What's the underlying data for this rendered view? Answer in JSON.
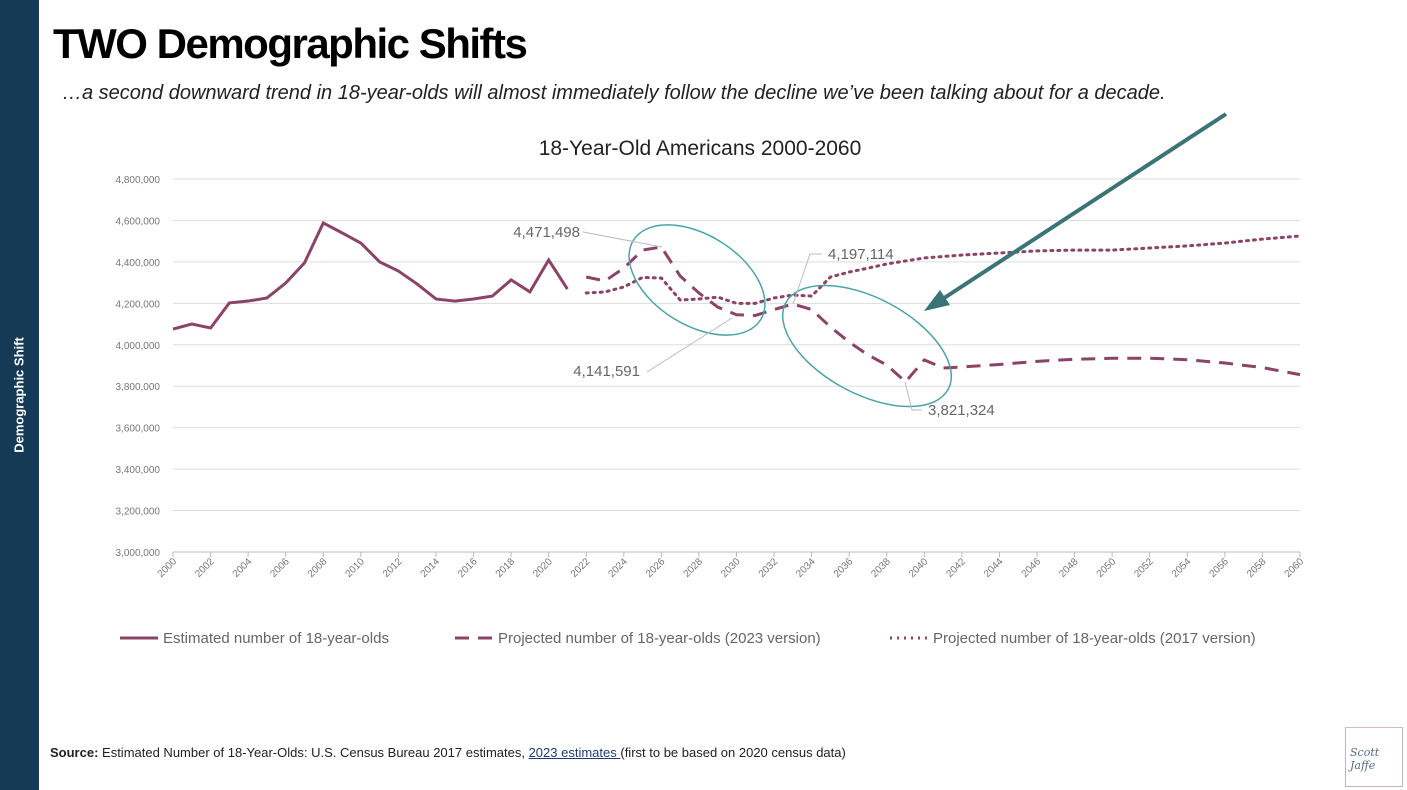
{
  "sidebar_label": "Demographic Shift",
  "title": "TWO Demographic Shifts",
  "subtitle": "…a second downward trend in 18-year-olds will almost immediately follow the decline we’ve been talking about for a decade.",
  "source": {
    "label": "Source:",
    "text": " Estimated Number of 18-Year-Olds: U.S. Census Bureau 2017 estimates, ",
    "link": "2023 estimates ",
    "tail": "(first to be based on 2020 census data)"
  },
  "logo_text": "Scott Jaffe",
  "colors": {
    "series": "#8b4468",
    "ellipse": "#4aa3a8",
    "arrow": "#3a7474",
    "sidebar": "#153a55"
  },
  "chart_data": {
    "type": "line",
    "title": "18-Year-Old Americans 2000-2060",
    "ylim": [
      3000000,
      4800000
    ],
    "yticks": [
      "3,000,000",
      "3,200,000",
      "3,400,000",
      "3,600,000",
      "3,800,000",
      "4,000,000",
      "4,200,000",
      "4,400,000",
      "4,600,000",
      "4,800,000"
    ],
    "xlim": [
      2000,
      2060
    ],
    "xticks": [
      "2000",
      "2002",
      "2004",
      "2006",
      "2008",
      "2010",
      "2012",
      "2014",
      "2016",
      "2018",
      "2020",
      "2022",
      "2024",
      "2026",
      "2028",
      "2030",
      "2032",
      "2034",
      "2036",
      "2038",
      "2040",
      "2042",
      "2044",
      "2046",
      "2048",
      "2050",
      "2052",
      "2054",
      "2056",
      "2058",
      "2060"
    ],
    "grid": true,
    "legend": "bottom",
    "series": [
      {
        "name": "Estimated number of 18-year-olds",
        "style": "solid",
        "x": [
          2000,
          2001,
          2002,
          2003,
          2004,
          2005,
          2006,
          2007,
          2008,
          2009,
          2010,
          2011,
          2012,
          2013,
          2014,
          2015,
          2016,
          2017,
          2018,
          2019,
          2020,
          2021
        ],
        "values": [
          4076000,
          4100000,
          4081000,
          4202000,
          4211000,
          4226000,
          4298000,
          4395000,
          4588000,
          4540000,
          4491000,
          4400000,
          4356000,
          4293000,
          4221000,
          4211000,
          4221000,
          4235000,
          4313000,
          4255000,
          4409000,
          4269000
        ]
      },
      {
        "name": "Projected number of 18-year-olds (2023 version)",
        "style": "dashed",
        "x": [
          2022,
          2023,
          2024,
          2025,
          2026,
          2027,
          2028,
          2029,
          2030,
          2031,
          2032,
          2033,
          2034,
          2035,
          2036,
          2037,
          2038,
          2039,
          2040,
          2041,
          2042,
          2044,
          2046,
          2048,
          2050,
          2052,
          2054,
          2056,
          2058,
          2060
        ],
        "values": [
          4327000,
          4308000,
          4370000,
          4457000,
          4471498,
          4332000,
          4250000,
          4182000,
          4145000,
          4141591,
          4170000,
          4197114,
          4170000,
          4086000,
          4013000,
          3951000,
          3902000,
          3821324,
          3927000,
          3888000,
          3893000,
          3905000,
          3920000,
          3930000,
          3935000,
          3935000,
          3928000,
          3912000,
          3890000,
          3856000
        ]
      },
      {
        "name": "Projected number of 18-year-olds (2017 version)",
        "style": "dotted",
        "x": [
          2022,
          2023,
          2024,
          2025,
          2026,
          2027,
          2028,
          2029,
          2030,
          2031,
          2032,
          2033,
          2034,
          2035,
          2036,
          2037,
          2038,
          2040,
          2042,
          2044,
          2046,
          2048,
          2050,
          2052,
          2054,
          2056,
          2058,
          2060
        ],
        "values": [
          4250000,
          4255000,
          4279000,
          4325000,
          4322000,
          4216000,
          4221000,
          4230000,
          4200000,
          4200000,
          4226000,
          4240000,
          4235000,
          4327000,
          4351000,
          4370000,
          4390000,
          4419000,
          4433000,
          4443000,
          4453000,
          4457000,
          4457000,
          4467000,
          4477000,
          4491000,
          4510000,
          4525000
        ]
      }
    ],
    "annotations": [
      "4,471,498",
      "4,141,591",
      "4,197,114",
      "3,821,324"
    ]
  }
}
